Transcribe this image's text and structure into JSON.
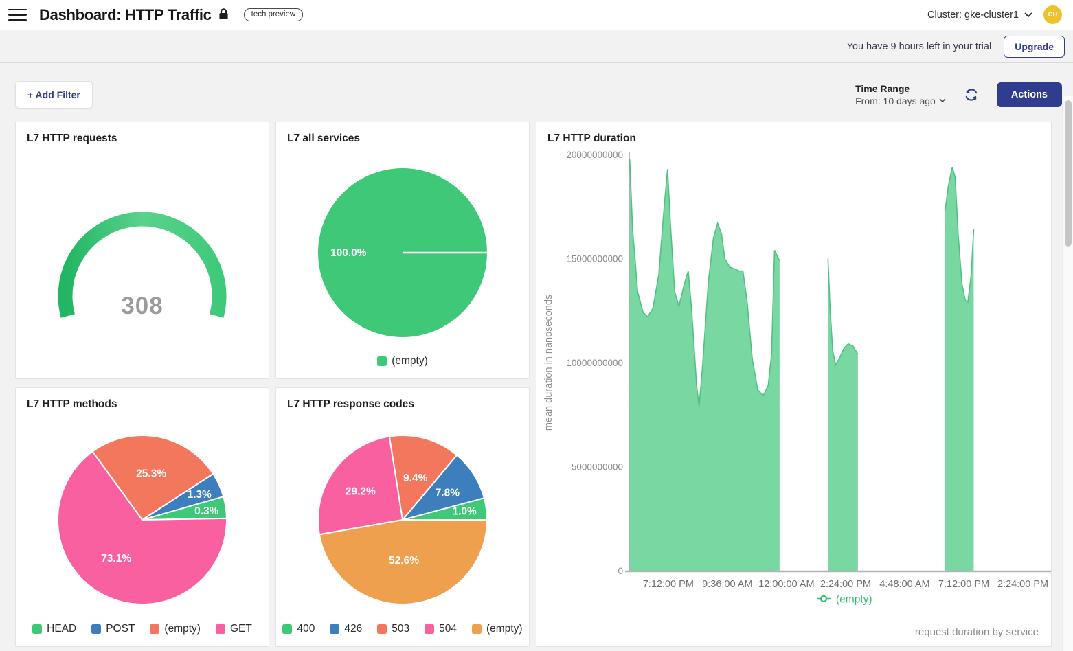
{
  "header": {
    "title": "Dashboard: HTTP Traffic",
    "badge": "tech preview",
    "cluster": "Cluster: gke-cluster1",
    "avatar": "CH"
  },
  "trial": {
    "message": "You have 9 hours left in your trial",
    "upgrade_label": "Upgrade"
  },
  "toolbar": {
    "add_filter_label": "+ Add Filter",
    "time_range_label": "Time Range",
    "time_range_value": "From: 10 days ago",
    "actions_label": "Actions"
  },
  "colors": {
    "green": "#3fc878",
    "blue": "#3d7ebd",
    "salmon": "#f3775c",
    "pink": "#f9609f",
    "orange": "#eea04e",
    "navy": "#303d8e",
    "area_fill": "#79d7a2",
    "area_line": "#53c083",
    "axis": "#b3b3b3",
    "tick_text": "#8c8c8c",
    "gauge_value": "#9b9b9b"
  },
  "chart_data": [
    {
      "id": "requests",
      "type": "gauge",
      "title": "L7 HTTP requests",
      "value": "308",
      "color_start": "#22b563",
      "color_mid": "#5ad28c",
      "color_end": "#3fc97a"
    },
    {
      "id": "services",
      "type": "pie",
      "title": "L7 all services",
      "slices": [
        {
          "name": "(empty)",
          "pct": 100.0,
          "label": "100.0%",
          "color": "#3fc878",
          "start": 0,
          "end": 360,
          "label_angle": 180,
          "label_r": 0.64
        }
      ],
      "legend": [
        {
          "name": "(empty)",
          "color": "#3fc878"
        }
      ]
    },
    {
      "id": "methods",
      "type": "pie",
      "title": "L7 HTTP methods",
      "slices": [
        {
          "name": "HEAD",
          "pct": 0.3,
          "label": "0.3%",
          "color": "#3fc878",
          "start": 1,
          "end": 16,
          "label_angle": 8,
          "label_r": 0.77
        },
        {
          "name": "POST",
          "pct": 1.3,
          "label": "1.3%",
          "color": "#3d7ebd",
          "start": 16,
          "end": 33,
          "label_angle": 24,
          "label_r": 0.74
        },
        {
          "name": "(empty)",
          "pct": 25.3,
          "label": "25.3%",
          "color": "#f3775c",
          "start": 33,
          "end": 126,
          "label_angle": 79,
          "label_r": 0.56
        },
        {
          "name": "GET",
          "pct": 73.1,
          "label": "73.1%",
          "color": "#f9609f",
          "start": 126,
          "end": 361,
          "label_angle": 236,
          "label_r": 0.55
        }
      ],
      "legend": [
        {
          "name": "HEAD",
          "color": "#3fc878"
        },
        {
          "name": "POST",
          "color": "#3d7ebd"
        },
        {
          "name": "(empty)",
          "color": "#f3775c"
        },
        {
          "name": "GET",
          "color": "#f9609f"
        }
      ]
    },
    {
      "id": "codes",
      "type": "pie",
      "title": "L7 HTTP response codes",
      "slices": [
        {
          "name": "400",
          "pct": 1.0,
          "label": "1.0%",
          "color": "#3fc878",
          "start": 0,
          "end": 15,
          "label_angle": 8,
          "label_r": 0.74
        },
        {
          "name": "426",
          "pct": 7.8,
          "label": "7.8%",
          "color": "#3d7ebd",
          "start": 15,
          "end": 50,
          "label_angle": 31,
          "label_r": 0.62
        },
        {
          "name": "503",
          "pct": 9.4,
          "label": "9.4%",
          "color": "#f3775c",
          "start": 50,
          "end": 99,
          "label_angle": 73,
          "label_r": 0.52
        },
        {
          "name": "504",
          "pct": 29.2,
          "label": "29.2%",
          "color": "#f9609f",
          "start": 99,
          "end": 190,
          "label_angle": 146,
          "label_r": 0.6
        },
        {
          "name": "(empty)",
          "pct": 52.6,
          "label": "52.6%",
          "color": "#eea04e",
          "start": 190,
          "end": 360,
          "label_angle": 272,
          "label_r": 0.48
        }
      ],
      "legend": [
        {
          "name": "400",
          "color": "#3fc878"
        },
        {
          "name": "426",
          "color": "#3d7ebd"
        },
        {
          "name": "503",
          "color": "#f3775c"
        },
        {
          "name": "504",
          "color": "#f9609f"
        },
        {
          "name": "(empty)",
          "color": "#eea04e"
        }
      ]
    },
    {
      "id": "duration",
      "type": "area",
      "title": "L7 HTTP duration",
      "ylabel": "mean duration in nanoseconds",
      "footer": "request duration by service",
      "legend_label": "(empty)",
      "value_unit": "nanoseconds",
      "value_scale": 1000000000,
      "y_max": 20,
      "y_ticks": [
        {
          "label": "20000000000",
          "value": 20
        },
        {
          "label": "15000000000",
          "value": 15
        },
        {
          "label": "10000000000",
          "value": 10
        },
        {
          "label": "5000000000",
          "value": 5
        },
        {
          "label": "0",
          "value": 0
        }
      ],
      "x_ticks": [
        "7:12:00 PM",
        "9:36:00 AM",
        "12:00:00 AM",
        "2:24:00 PM",
        "4:48:00 AM",
        "7:12:00 PM",
        "2:24:00 PM"
      ],
      "segments": [
        {
          "points": [
            [
              0.001,
              19.8
            ],
            [
              0.008,
              16.4
            ],
            [
              0.02,
              13.4
            ],
            [
              0.033,
              12.4
            ],
            [
              0.044,
              12.2
            ],
            [
              0.056,
              12.6
            ],
            [
              0.07,
              14.2
            ],
            [
              0.083,
              17.5
            ],
            [
              0.091,
              19.3
            ],
            [
              0.098,
              16.6
            ],
            [
              0.108,
              13.4
            ],
            [
              0.118,
              12.7
            ],
            [
              0.131,
              13.8
            ],
            [
              0.14,
              14.4
            ],
            [
              0.148,
              12.6
            ],
            [
              0.16,
              8.9
            ],
            [
              0.166,
              7.9
            ],
            [
              0.174,
              9.8
            ],
            [
              0.188,
              13.9
            ],
            [
              0.2,
              16.0
            ],
            [
              0.21,
              16.7
            ],
            [
              0.219,
              16.2
            ],
            [
              0.227,
              15.0
            ],
            [
              0.238,
              14.6
            ],
            [
              0.25,
              14.5
            ],
            [
              0.262,
              14.4
            ],
            [
              0.27,
              14.4
            ],
            [
              0.28,
              12.9
            ],
            [
              0.292,
              10.2
            ],
            [
              0.305,
              8.7
            ],
            [
              0.318,
              8.4
            ],
            [
              0.33,
              8.9
            ],
            [
              0.338,
              10.4
            ],
            [
              0.345,
              15.4
            ],
            [
              0.352,
              15.1
            ],
            [
              0.357,
              14.9
            ]
          ]
        },
        {
          "points": [
            [
              0.472,
              15.0
            ],
            [
              0.477,
              12.6
            ],
            [
              0.483,
              10.6
            ],
            [
              0.49,
              9.9
            ],
            [
              0.499,
              10.2
            ],
            [
              0.51,
              10.7
            ],
            [
              0.52,
              10.9
            ],
            [
              0.531,
              10.8
            ],
            [
              0.543,
              10.4
            ]
          ]
        },
        {
          "points": [
            [
              0.75,
              17.3
            ],
            [
              0.758,
              18.5
            ],
            [
              0.767,
              19.4
            ],
            [
              0.774,
              18.9
            ],
            [
              0.781,
              16.2
            ],
            [
              0.79,
              13.8
            ],
            [
              0.798,
              13.0
            ],
            [
              0.804,
              12.9
            ],
            [
              0.812,
              14.2
            ],
            [
              0.818,
              16.4
            ]
          ]
        }
      ]
    }
  ]
}
